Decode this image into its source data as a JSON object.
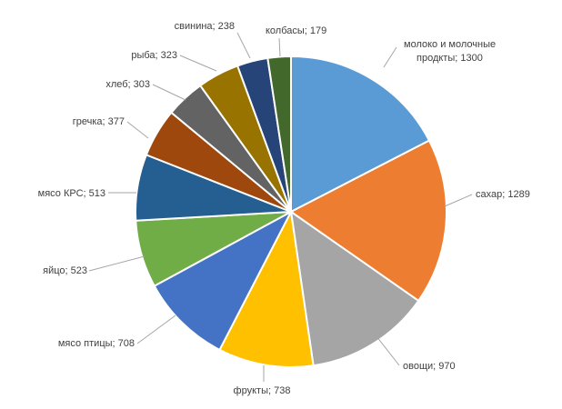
{
  "chart_data": {
    "type": "pie",
    "title": "",
    "legend": "none",
    "slices": [
      {
        "name": "молоко и молочные",
        "name2": "продкты",
        "value": 1300,
        "color": "#5B9BD5"
      },
      {
        "name": "сахар",
        "value": 1289,
        "color": "#ED7D31"
      },
      {
        "name": "овощи",
        "value": 970,
        "color": "#A5A5A5"
      },
      {
        "name": "фрукты",
        "value": 738,
        "color": "#FFC000"
      },
      {
        "name": "мясо птицы",
        "value": 708,
        "color": "#4472C4"
      },
      {
        "name": "яйцо",
        "value": 523,
        "color": "#70AD47"
      },
      {
        "name": "мясо КРС",
        "value": 513,
        "color": "#255E91"
      },
      {
        "name": "гречка",
        "value": 377,
        "color": "#9E480E"
      },
      {
        "name": "хлеб",
        "value": 303,
        "color": "#636363"
      },
      {
        "name": "рыба",
        "value": 323,
        "color": "#997300"
      },
      {
        "name": "свинина",
        "value": 238,
        "color": "#264478"
      },
      {
        "name": "колбасы",
        "value": 179,
        "color": "#43682B"
      }
    ]
  }
}
